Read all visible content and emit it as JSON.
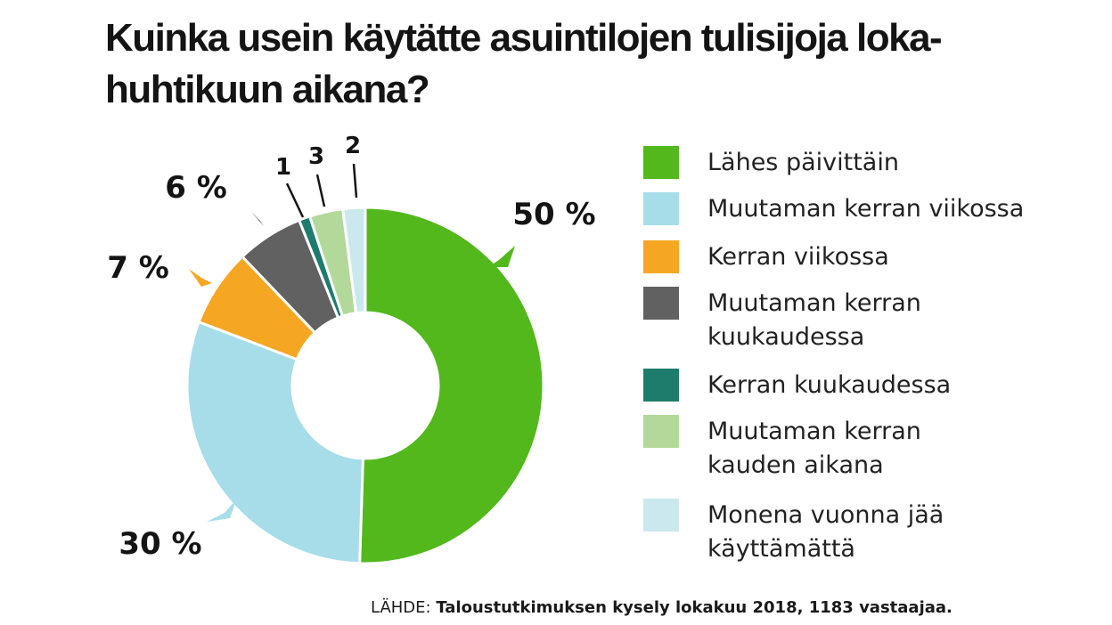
{
  "chart_data": {
    "type": "pie",
    "title": "Kuinka usein käytätte asuintilojen tulisijoja loka-huhtikuun aikana?",
    "unit": "%",
    "slices": [
      {
        "name": "Lähes päivittäin",
        "value": 50,
        "label": "50 %",
        "color": "#52b81c"
      },
      {
        "name": "Muutaman kerran viikossa",
        "value": 30,
        "label": "30 %",
        "color": "#a6dde9"
      },
      {
        "name": "Kerran viikossa",
        "value": 7,
        "label": "7 %",
        "color": "#f5a623"
      },
      {
        "name": "Muutaman kerran kuukaudessa",
        "value": 6,
        "label": "6 %",
        "color": "#616161"
      },
      {
        "name": "Kerran kuukaudessa",
        "value": 1,
        "label": "1",
        "color": "#1e7c6c"
      },
      {
        "name": "Muutaman kerran kauden aikana",
        "value": 3,
        "label": "3",
        "color": "#b3d99a"
      },
      {
        "name": "Monena vuonna jää käyttämättä",
        "value": 2,
        "label": "2",
        "color": "#cce8ef"
      }
    ],
    "legend_position": "right"
  },
  "legend": [
    {
      "label": "Lähes päivittäin",
      "color": "#52b81c"
    },
    {
      "label": "Muutaman kerran viikossa",
      "color": "#a6dde9"
    },
    {
      "label": "Kerran viikossa",
      "color": "#f5a623"
    },
    {
      "label": "Muutaman kerran\nkuukaudessa",
      "color": "#616161"
    },
    {
      "label": "Kerran kuukaudessa",
      "color": "#1e7c6c"
    },
    {
      "label": "Muutaman kerran\nkauden aikana",
      "color": "#b3d99a"
    },
    {
      "label": "Monena vuonna jää\nkäyttämättä",
      "color": "#cce8ef"
    }
  ],
  "source": {
    "prefix": "LÄHDE: ",
    "text": "Taloustutkimuksen kysely lokakuu 2018, 1183 vastaajaa."
  }
}
